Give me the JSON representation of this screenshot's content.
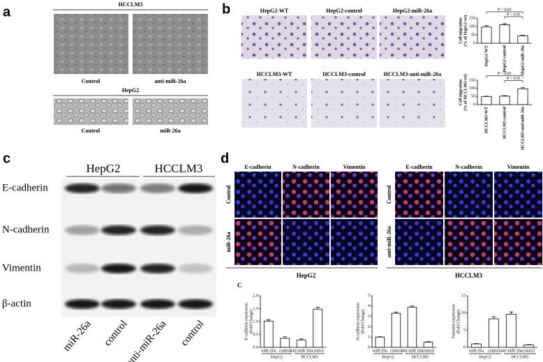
{
  "panel_a": {
    "label": "a",
    "groups": [
      {
        "title": "HCCLM3",
        "images": [
          "Control",
          "anti-miR-26a"
        ]
      },
      {
        "title": "HepG2",
        "images": [
          "Control",
          "miR-26a"
        ]
      }
    ]
  },
  "panel_b": {
    "label": "b",
    "rows": [
      {
        "images": [
          "HepG2-WT",
          "HepG2-control",
          "HepG2-miR-26a"
        ],
        "chart": {
          "type": "bar",
          "y_label": [
            "Cell migration",
            "(% of HepG2-wt)"
          ],
          "categories": [
            "HepG2-WT",
            "HepG2-control",
            "HepG2-miR-26a"
          ],
          "values": [
            97,
            110,
            45
          ],
          "errors": [
            8,
            7,
            3
          ],
          "ylim": [
            0,
            150
          ],
          "yticks": [
            0,
            50,
            100,
            150
          ],
          "annotations": [
            "P < 0.01",
            "P < 0.01"
          ]
        }
      },
      {
        "images": [
          "HCCLM3-WT",
          "HCCLM3-control",
          "HCCLM3-anti-miR-26a"
        ],
        "chart": {
          "type": "bar",
          "y_label": [
            "Cell migration",
            "(% of HCCLM3-wt)"
          ],
          "categories": [
            "HCCLM3-WT",
            "HCCLM3-control",
            "HCCLM3-anti-miR-26a"
          ],
          "values": [
            50,
            52,
            97
          ],
          "errors": [
            2,
            3,
            7
          ],
          "ylim": [
            0,
            150
          ],
          "yticks": [
            0,
            50,
            100,
            150
          ],
          "annotations": [
            "P < 0.01",
            "P < 0.01"
          ]
        }
      }
    ]
  },
  "panel_c": {
    "label": "c",
    "groups": [
      "HepG2",
      "HCCLM3"
    ],
    "proteins": [
      "E-cadherin",
      "N-cadherin",
      "Vimentin",
      "β-actin"
    ],
    "lanes": [
      "miR-26a",
      "control",
      "anti-miR-26a",
      "control"
    ]
  },
  "panel_d": {
    "label": "d",
    "groups": [
      {
        "title": "HepG2",
        "columns": [
          "E-cadherin",
          "N-cadherin",
          "Vimentin"
        ],
        "rows": [
          "Control",
          "miR-26a"
        ]
      },
      {
        "title": "HCCLM3",
        "columns": [
          "E-cadherin",
          "N-cadherin",
          "Vimentin"
        ],
        "rows": [
          "Control",
          "anti-miR-26a"
        ]
      }
    ],
    "sublabel": "C",
    "charts": [
      {
        "type": "bar",
        "y_label": [
          "E-cadherin expression",
          "(Fold Change)"
        ],
        "categories": [
          "miR-26a",
          "control",
          "anti-miR-26a",
          "control"
        ],
        "groups": [
          "HepG2",
          "HCCLM3"
        ],
        "values": [
          1.02,
          0.35,
          0.28,
          1.48
        ],
        "errors": [
          0.05,
          0.06,
          0.05,
          0.07
        ],
        "ylim": [
          0,
          2
        ],
        "yticks": [
          {
            "value": 0,
            "label": "0.0"
          },
          {
            "value": 0.5,
            "label": "0.5"
          },
          {
            "value": 1,
            "label": "1.0"
          },
          {
            "value": 1.5,
            "label": "1.5"
          },
          {
            "value": 2,
            "label": "2.0"
          }
        ]
      },
      {
        "type": "bar",
        "y_label": [
          "N-cadherin expression",
          "(Fold Change)"
        ],
        "categories": [
          "miR-26a",
          "control",
          "anti-miR-26a",
          "control"
        ],
        "groups": [
          "HepG2",
          "HCCLM3"
        ],
        "values": [
          1.0,
          3.3,
          3.9,
          0.5
        ],
        "errors": [
          0.03,
          0.12,
          0.1,
          0.05
        ],
        "ylim": [
          0,
          5
        ],
        "yticks": [
          0,
          1,
          2,
          3,
          4,
          5
        ]
      },
      {
        "type": "bar",
        "y_label": [
          "Vimentin expression",
          "(Fold Change)"
        ],
        "categories": [
          "miR-26a",
          "control",
          "anti-miR-26a",
          "control"
        ],
        "groups": [
          "HepG2",
          "HCCLM3"
        ],
        "values": [
          1.0,
          8.3,
          9.6,
          0.7
        ],
        "errors": [
          0.1,
          0.6,
          0.7,
          0.1
        ],
        "ylim": [
          0,
          15
        ],
        "yticks": [
          0,
          5,
          10,
          15
        ]
      }
    ]
  }
}
